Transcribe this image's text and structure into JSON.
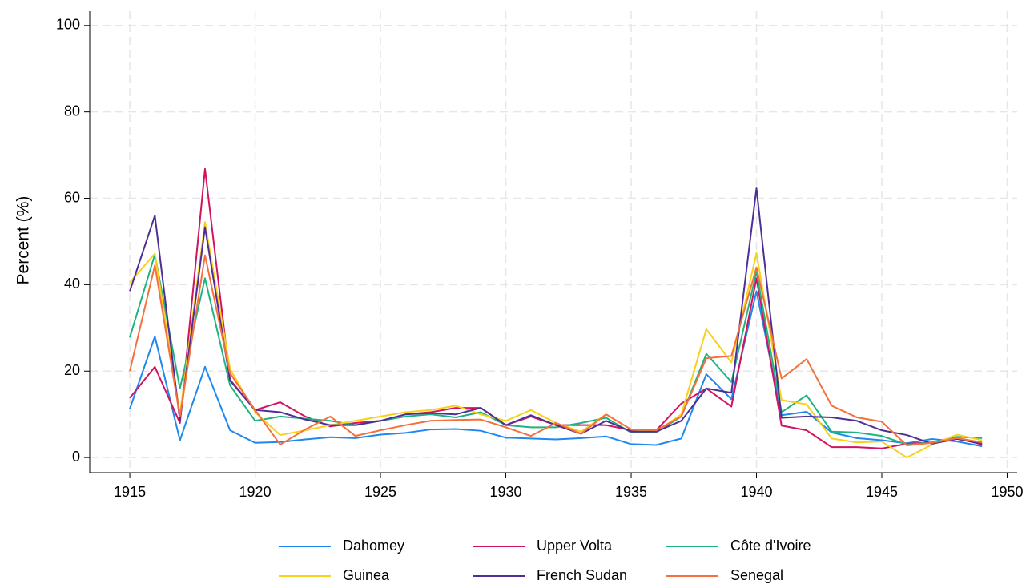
{
  "chart_data": {
    "type": "line",
    "y_label": "Percent (%)",
    "x": [
      1915,
      1916,
      1917,
      1918,
      1919,
      1920,
      1921,
      1922,
      1923,
      1924,
      1925,
      1926,
      1927,
      1928,
      1929,
      1930,
      1931,
      1932,
      1933,
      1934,
      1935,
      1936,
      1937,
      1938,
      1939,
      1940,
      1941,
      1942,
      1943,
      1944,
      1945,
      1946,
      1947,
      1948,
      1949
    ],
    "series": [
      {
        "name": "Dahomey",
        "color": "#1e88f0",
        "values": [
          11.3,
          28,
          4,
          21,
          6.3,
          3.4,
          3.6,
          4.2,
          4.7,
          4.5,
          5.3,
          5.7,
          6.5,
          6.6,
          6.2,
          4.6,
          4.4,
          4.2,
          4.5,
          4.9,
          3.1,
          2.9,
          4.4,
          19.3,
          13.5,
          38.5,
          9.8,
          10.6,
          5.8,
          4.5,
          4,
          3.3,
          4.3,
          3.7,
          2.6
        ]
      },
      {
        "name": "Upper Volta",
        "color": "#d2145f",
        "values": [
          13.8,
          21,
          8,
          66.8,
          18,
          11,
          12.8,
          9.5,
          7.2,
          8,
          8.5,
          10,
          10.5,
          11.5,
          11.5,
          7.5,
          9.5,
          7.5,
          7.5,
          7.5,
          6.3,
          6.3,
          12.5,
          16,
          11.8,
          41.5,
          7.4,
          6.3,
          2.4,
          2.4,
          2.1,
          3.2,
          3.5,
          4.5,
          3
        ]
      },
      {
        "name": "Côte d'Ivoire",
        "color": "#1eb482",
        "values": [
          27.8,
          47,
          16,
          41.5,
          16.7,
          8.5,
          9.5,
          9,
          8.5,
          7.5,
          8.5,
          9.5,
          10,
          9.3,
          10.5,
          7.5,
          7,
          7,
          8,
          9.2,
          5.8,
          5.8,
          9.5,
          24,
          17.5,
          43,
          10.5,
          14.4,
          6,
          5.8,
          5,
          3,
          3.5,
          4.8,
          4.5
        ]
      },
      {
        "name": "Guinea",
        "color": "#f9d01a",
        "values": [
          40.5,
          47.2,
          10,
          54.5,
          20.5,
          10.5,
          5.2,
          6.3,
          7.5,
          8.5,
          9.5,
          10.5,
          11,
          12,
          10,
          8.5,
          11,
          8,
          6,
          10,
          6.5,
          6,
          10,
          29.7,
          22,
          47.3,
          13.3,
          12.3,
          4.4,
          3.5,
          3.7,
          0,
          3,
          5.3,
          4
        ]
      },
      {
        "name": "French Sudan",
        "color": "#4e2f98",
        "values": [
          38.5,
          56,
          8.5,
          53.3,
          17.8,
          11,
          10.5,
          8.8,
          7.5,
          7.5,
          8.5,
          10,
          10.3,
          10,
          11.5,
          7.5,
          9.8,
          7.5,
          5.5,
          8.5,
          6,
          6,
          8.5,
          16,
          15,
          62.3,
          9.2,
          9.5,
          9.3,
          8.5,
          6.3,
          5.2,
          3.2,
          4.3,
          3.2
        ]
      },
      {
        "name": "Senegal",
        "color": "#f5703c",
        "values": [
          20,
          44.5,
          9.5,
          46.8,
          19.5,
          11,
          3,
          6.5,
          9.5,
          5,
          6.3,
          7.5,
          8.5,
          8.7,
          8.8,
          7,
          5,
          8,
          5.5,
          10,
          6.5,
          6.3,
          9.5,
          23,
          23.5,
          44,
          18.3,
          22.8,
          12,
          9.3,
          8.3,
          2.8,
          3.4,
          4.5,
          3.5
        ]
      }
    ],
    "xlim": [
      1913.4,
      1950.4
    ],
    "ylim": [
      -3.5,
      103.3
    ],
    "xticks": [
      1915,
      1920,
      1925,
      1930,
      1935,
      1940,
      1945,
      1950
    ],
    "yticks": [
      0,
      20,
      40,
      60,
      80,
      100
    ],
    "grid": true,
    "legend": "bottom"
  }
}
